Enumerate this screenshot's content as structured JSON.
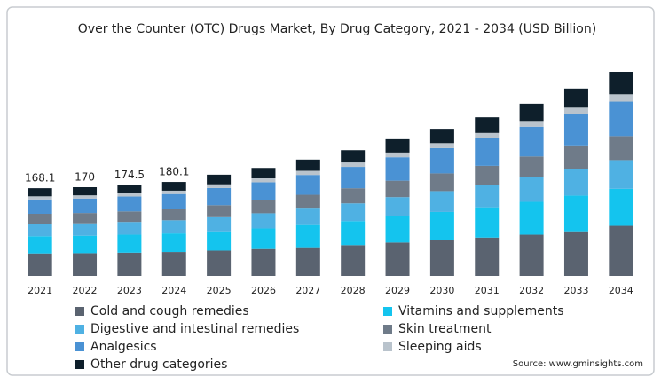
{
  "chart_data": {
    "type": "stacked_bar",
    "title": "Over the Counter (OTC) Drugs Market, By Drug Category, 2021 - 2034 (USD Billion)",
    "source": "Source: www.gminsights.com",
    "categories": [
      "2021",
      "2022",
      "2023",
      "2024",
      "2025",
      "2026",
      "2027",
      "2028",
      "2029",
      "2030",
      "2031",
      "2032",
      "2033",
      "2034"
    ],
    "series": [
      {
        "name": "Cold and cough remedies",
        "color": "#5a6370",
        "values": [
          43,
          43.5,
          44.5,
          45.8,
          48.5,
          51.5,
          55,
          59,
          64,
          68.5,
          73.5,
          79,
          85.5,
          96
        ]
      },
      {
        "name": "Vitamins and supplements",
        "color": "#14c4ee",
        "values": [
          33,
          33.5,
          34.5,
          35.6,
          37,
          39.5,
          42.5,
          46,
          50,
          54,
          58,
          63,
          68.5,
          71
        ]
      },
      {
        "name": "Digestive and intestinal remedies",
        "color": "#4fb1e3",
        "values": [
          23.5,
          23.8,
          24.4,
          25.2,
          27,
          29,
          31.5,
          34,
          37,
          40,
          43,
          47,
          51,
          55
        ]
      },
      {
        "name": "Skin treatment",
        "color": "#6f7b89",
        "values": [
          19.5,
          19.7,
          20.2,
          20.9,
          23,
          24.5,
          26.5,
          29,
          31.5,
          34,
          36.5,
          40,
          43.5,
          46
        ]
      },
      {
        "name": "Analgesics",
        "color": "#4a92d4",
        "values": [
          27.5,
          27.8,
          28.5,
          29.4,
          33,
          35,
          38,
          41,
          45,
          48.5,
          52.5,
          57,
          62,
          66
        ]
      },
      {
        "name": "Sleeping aids",
        "color": "#b9c3cc",
        "values": [
          6,
          6.1,
          6.2,
          6.4,
          7,
          7.5,
          8,
          8.5,
          9,
          9.5,
          10.5,
          11,
          12,
          14
        ]
      },
      {
        "name": "Other drug categories",
        "color": "#0e1f2b",
        "values": [
          15.6,
          15.6,
          16.2,
          16.8,
          18.5,
          20,
          21.5,
          23.5,
          25.5,
          27.5,
          30,
          33,
          36.5,
          43
        ]
      }
    ],
    "totals": [
      168.1,
      170,
      174.5,
      180.1
    ]
  }
}
